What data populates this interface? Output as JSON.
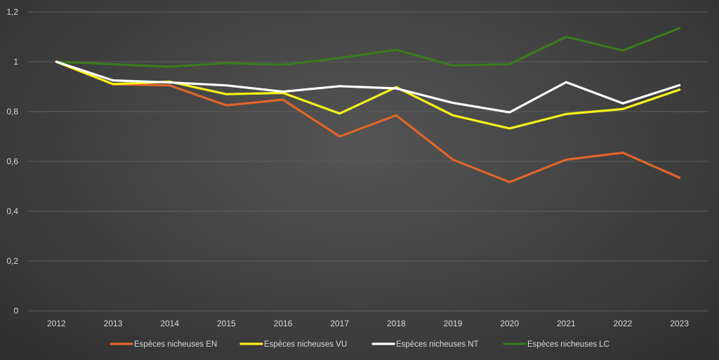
{
  "chart_data": {
    "type": "line",
    "title": "",
    "xlabel": "",
    "ylabel": "",
    "categories": [
      "2012",
      "2013",
      "2014",
      "2015",
      "2016",
      "2017",
      "2018",
      "2019",
      "2020",
      "2021",
      "2022",
      "2023"
    ],
    "ylim": [
      0,
      1.2
    ],
    "yticks": [
      "0",
      "0,2",
      "0,4",
      "0,6",
      "0,8",
      "1",
      "1,2"
    ],
    "grid": true,
    "legend_position": "bottom",
    "series": [
      {
        "name": "Espèces nicheuses EN",
        "color": "#e0652a",
        "values": [
          1.0,
          0.91,
          0.905,
          0.825,
          0.848,
          0.7,
          0.785,
          0.607,
          0.517,
          0.607,
          0.635,
          0.535
        ]
      },
      {
        "name": "Espèces nicheuses VU",
        "color": "#f7f21a",
        "values": [
          1.0,
          0.91,
          0.92,
          0.87,
          0.875,
          0.792,
          0.898,
          0.785,
          0.732,
          0.79,
          0.81,
          0.888
        ]
      },
      {
        "name": "Espèces nicheuses NT",
        "color": "#ffffff",
        "values": [
          1.0,
          0.925,
          0.917,
          0.905,
          0.88,
          0.902,
          0.893,
          0.835,
          0.797,
          0.918,
          0.833,
          0.906
        ]
      },
      {
        "name": "Espèces nicheuses LC",
        "color": "#3b7a1f",
        "values": [
          1.0,
          0.99,
          0.98,
          0.995,
          0.988,
          1.015,
          1.048,
          0.985,
          0.99,
          1.1,
          1.045,
          1.135
        ]
      }
    ]
  }
}
